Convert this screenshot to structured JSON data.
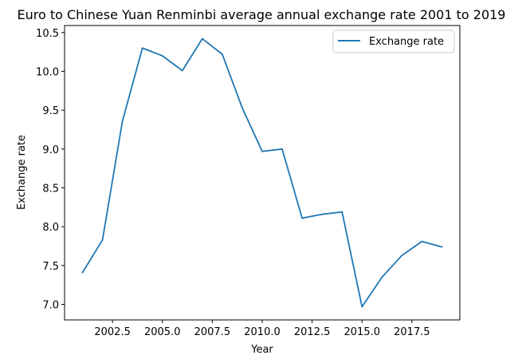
{
  "chart_data": {
    "type": "line",
    "title": "Euro to Chinese Yuan Renminbi average annual exchange rate 2001 to 2019",
    "xlabel": "Year",
    "ylabel": "Exchange rate",
    "x": [
      2001,
      2002,
      2003,
      2004,
      2005,
      2006,
      2007,
      2008,
      2009,
      2010,
      2011,
      2012,
      2013,
      2014,
      2015,
      2016,
      2017,
      2018,
      2019
    ],
    "series": [
      {
        "name": "Exchange rate",
        "color": "#1f77b4",
        "values": [
          7.41,
          7.83,
          9.36,
          10.3,
          10.2,
          10.01,
          10.42,
          10.22,
          9.53,
          8.97,
          9.0,
          8.11,
          8.16,
          8.19,
          6.97,
          7.35,
          7.63,
          7.81,
          7.74
        ]
      }
    ],
    "xlim": [
      2000.1,
      2019.9
    ],
    "ylim": [
      6.8,
      10.59
    ],
    "xticks": [
      "2002.5",
      "2005.0",
      "2007.5",
      "2010.0",
      "2012.5",
      "2015.0",
      "2017.5"
    ],
    "yticks": [
      "7.0",
      "7.5",
      "8.0",
      "8.5",
      "9.0",
      "9.5",
      "10.0",
      "10.5"
    ],
    "grid": false,
    "legend_position": "upper right"
  }
}
